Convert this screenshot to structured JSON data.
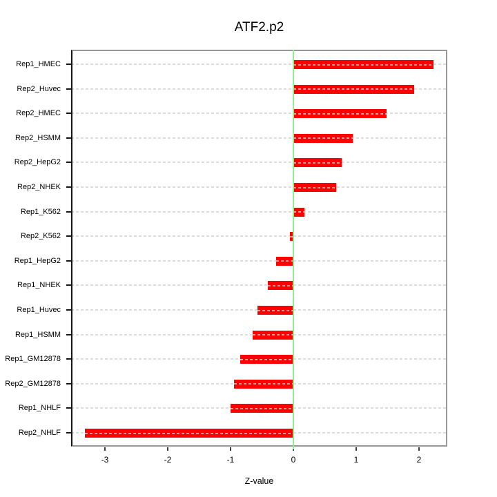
{
  "figure": {
    "title": "ATF2.p2",
    "xlabel": "Z-value"
  },
  "chart_data": {
    "type": "bar",
    "orientation": "horizontal",
    "title": "ATF2.p2",
    "xlabel": "Z-value",
    "ylabel": "",
    "categories": [
      "Rep1_HMEC",
      "Rep2_Huvec",
      "Rep2_HMEC",
      "Rep2_HSMM",
      "Rep2_HepG2",
      "Rep2_NHEK",
      "Rep1_K562",
      "Rep2_K562",
      "Rep1_HepG2",
      "Rep1_NHEK",
      "Rep1_Huvec",
      "Rep1_HSMM",
      "Rep1_GM12878",
      "Rep2_GM12878",
      "Rep1_NHLF",
      "Rep2_NHLF"
    ],
    "values": [
      2.23,
      1.92,
      1.48,
      0.95,
      0.77,
      0.68,
      0.18,
      -0.05,
      -0.28,
      -0.41,
      -0.57,
      -0.65,
      -0.85,
      -0.95,
      -1.0,
      -3.32
    ],
    "xlim": [
      -3.54,
      2.45
    ],
    "xticks": [
      -3,
      -2,
      -1,
      0,
      1,
      2
    ],
    "grid": "dashed-line-per-category",
    "legend": "none",
    "zero_reference_line": 0,
    "colors": {
      "bar": "#ff0000",
      "bar_dash_overlay": "#ffb3b3",
      "zero_line": "#90ee90",
      "grid_line": "#dcdcdc",
      "box": "#979797",
      "axis": "#141414",
      "text": "#000000"
    }
  }
}
